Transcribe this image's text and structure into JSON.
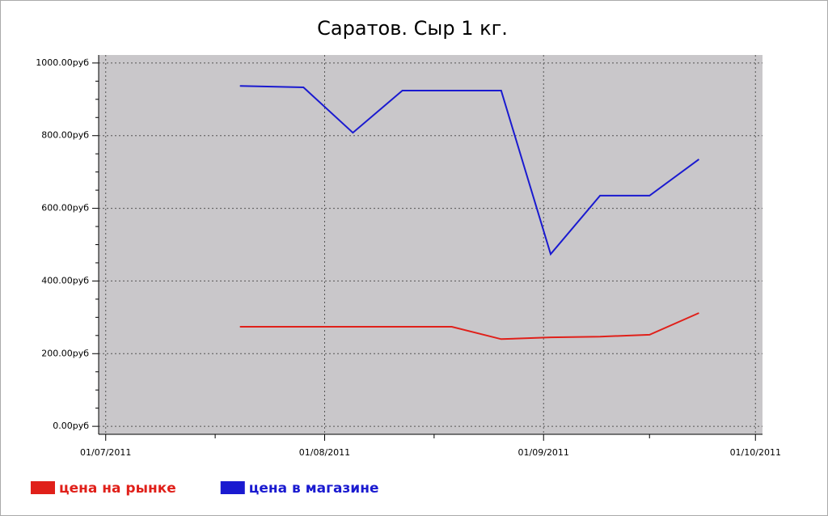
{
  "chart_data": {
    "type": "line",
    "title": "Саратов. Сыр 1 кг.",
    "x": [
      "2011-07-20",
      "2011-07-29",
      "2011-08-05",
      "2011-08-12",
      "2011-08-19",
      "2011-08-26",
      "2011-09-02",
      "2011-09-09",
      "2011-09-16",
      "2011-09-23"
    ],
    "series": [
      {
        "name": "цена на рынке",
        "color": "#e0201a",
        "values": [
          274,
          274,
          274,
          274,
          274,
          240,
          245,
          247,
          252,
          312
        ]
      },
      {
        "name": "цена в магазине",
        "color": "#1a1ad0",
        "values": [
          937,
          933,
          808,
          924,
          924,
          924,
          474,
          635,
          635,
          735
        ]
      }
    ],
    "xlim": [
      "2011-06-30",
      "2011-10-02"
    ],
    "xticks": [
      {
        "value": "2011-07-01",
        "label": "01/07/2011"
      },
      {
        "value": "2011-08-01",
        "label": "01/08/2011"
      },
      {
        "value": "2011-09-01",
        "label": "01/09/2011"
      },
      {
        "value": "2011-10-01",
        "label": "01/10/2011"
      }
    ],
    "ylim": [
      -22,
      1022
    ],
    "yticks": [
      {
        "value": 0,
        "label": "0.00руб"
      },
      {
        "value": 200,
        "label": "200.00руб"
      },
      {
        "value": 400,
        "label": "400.00руб"
      },
      {
        "value": 600,
        "label": "600.00руб"
      },
      {
        "value": 800,
        "label": "800.00руб"
      },
      {
        "value": 1000,
        "label": "1000.00руб"
      }
    ],
    "grid": true,
    "legend": "bottom-left"
  }
}
